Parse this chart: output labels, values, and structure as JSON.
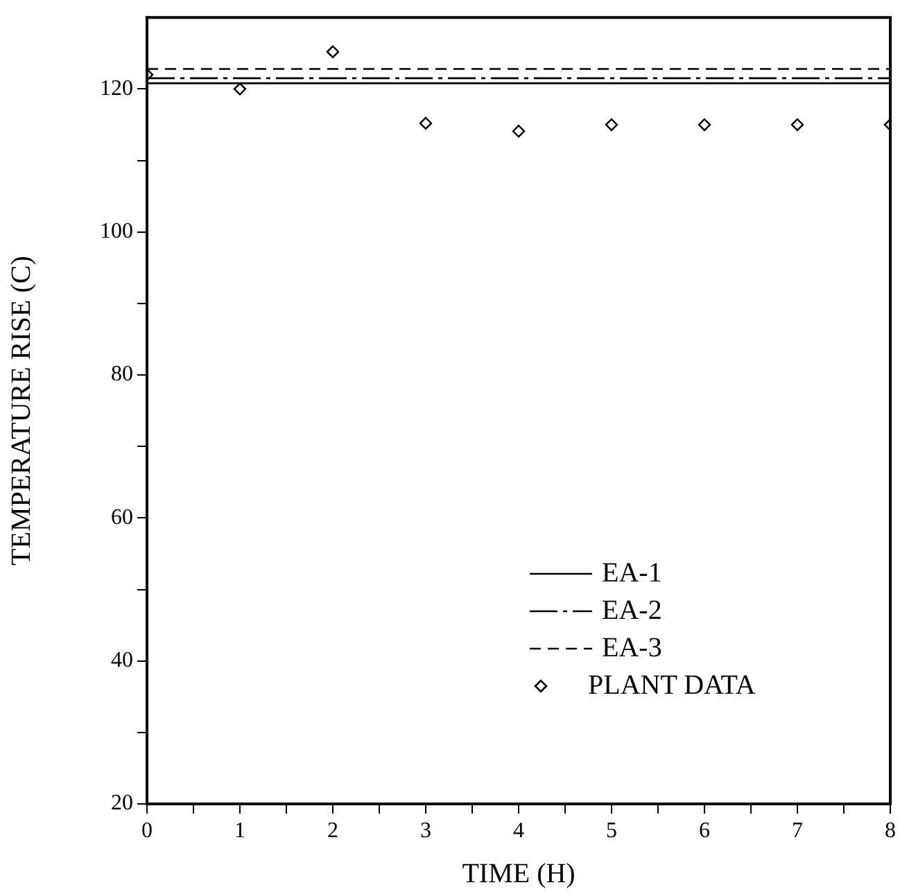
{
  "chart_data": {
    "type": "line",
    "xlabel": "TIME (H)",
    "ylabel": "TEMPERATURE RISE (C)",
    "xlim": [
      0,
      8
    ],
    "ylim": [
      20,
      130
    ],
    "xticks": [
      0,
      {
        "value": 0.5,
        "label": null
      },
      1,
      {
        "value": 1.5,
        "label": null
      },
      2,
      {
        "value": 2.5,
        "label": null
      },
      3,
      {
        "value": 3.5,
        "label": null
      },
      4,
      {
        "value": 4.5,
        "label": null
      },
      5,
      {
        "value": 5.5,
        "label": null
      },
      6,
      {
        "value": 6.5,
        "label": null
      },
      7,
      {
        "value": 7.5,
        "label": null
      },
      8
    ],
    "yticks": [
      20,
      {
        "value": 30,
        "label": null
      },
      40,
      {
        "value": 50,
        "label": null
      },
      60,
      {
        "value": 70,
        "label": null
      },
      80,
      {
        "value": 90,
        "label": null
      },
      100,
      {
        "value": 110,
        "label": null
      },
      120
    ],
    "grid": false,
    "legend": "bottom right",
    "series": [
      {
        "name": "EA-1",
        "color": "#000000",
        "line_style": "solid",
        "marker": "none",
        "x": [
          0,
          8
        ],
        "values": [
          120.8,
          120.8
        ]
      },
      {
        "name": "EA-2",
        "color": "#000000",
        "line_style": "dashdot",
        "marker": "none",
        "x": [
          0,
          8
        ],
        "values": [
          121.5,
          121.5
        ]
      },
      {
        "name": "EA-3",
        "color": "#000000",
        "line_style": "dashed",
        "marker": "none",
        "x": [
          0,
          8
        ],
        "values": [
          122.8,
          122.8
        ]
      },
      {
        "name": "PLANT DATA",
        "type": "scatter",
        "color": "#000000",
        "marker": "diamond",
        "x": [
          0,
          1,
          2,
          3,
          4,
          5,
          6,
          7,
          8
        ],
        "values": [
          122,
          120,
          125.2,
          115.2,
          114.1,
          115,
          115,
          115,
          115
        ]
      }
    ]
  }
}
